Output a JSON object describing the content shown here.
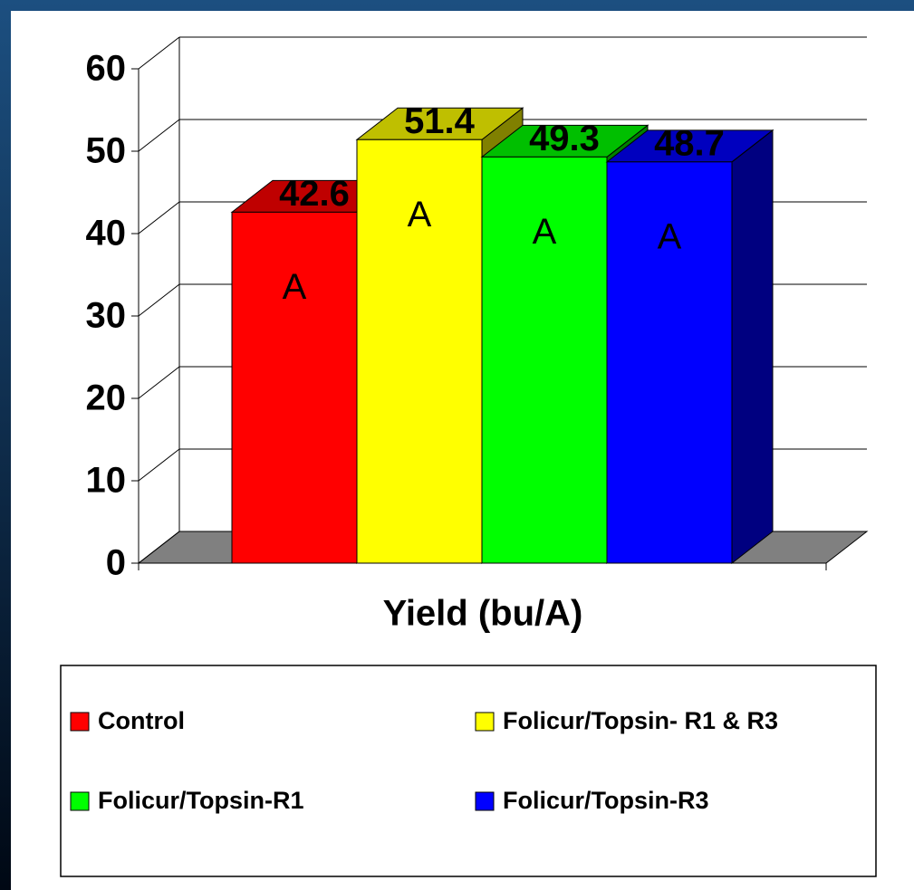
{
  "chart_data": {
    "type": "bar",
    "xlabel": "Yield (bu/A)",
    "series": [
      {
        "name": "Control",
        "color": "#ff0000",
        "values": [
          42.6
        ],
        "letter": "A"
      },
      {
        "name": "Folicur/Topsin- R1 & R3",
        "color": "#ffff00",
        "values": [
          51.4
        ],
        "letter": "A"
      },
      {
        "name": "Folicur/Topsin-R1",
        "color": "#00ff00",
        "values": [
          49.3
        ],
        "letter": "A"
      },
      {
        "name": "Folicur/Topsin-R3",
        "color": "#0000ff",
        "values": [
          48.7
        ],
        "letter": "A"
      }
    ],
    "ylim": [
      0,
      60
    ],
    "yticks": [
      0,
      10,
      20,
      30,
      40,
      50,
      60
    ],
    "grid": true
  }
}
